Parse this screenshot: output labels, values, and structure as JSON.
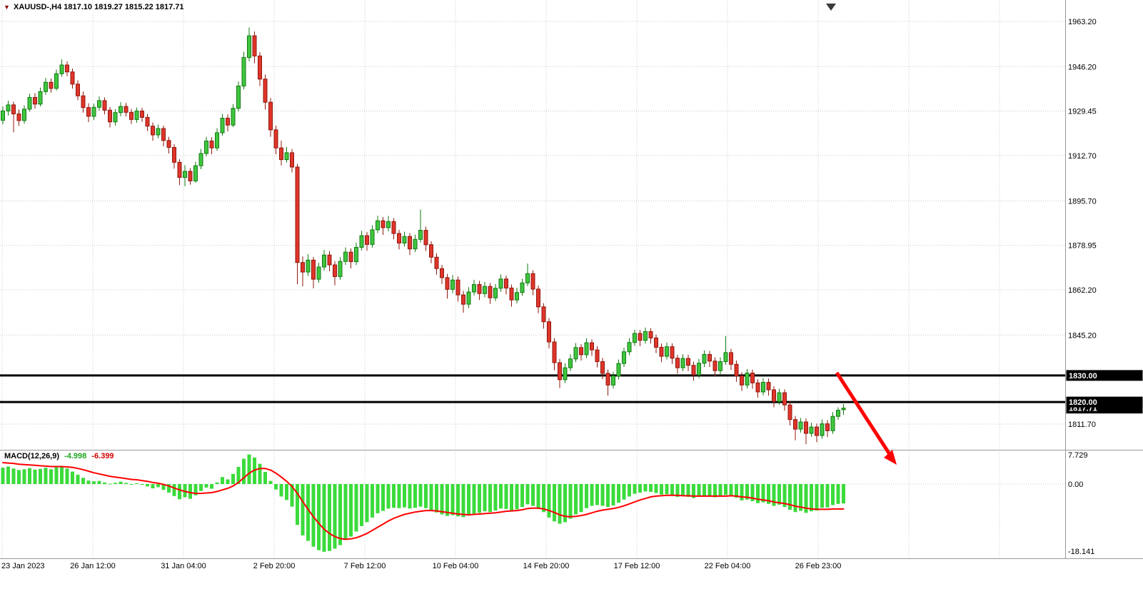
{
  "header": {
    "dropdown_icon": "▼",
    "symbol": "XAUUSD-,H4",
    "ohlc": "1817.10 1819.27 1815.22 1817.71"
  },
  "price_axis": {
    "levels": [
      {
        "label": "1830.00",
        "price": 1830.0
      },
      {
        "label": "1820.00",
        "price": 1820.0
      }
    ],
    "current_price": {
      "label": "1817.71",
      "price": 1817.71
    }
  },
  "macd_panel": {
    "label": "MACD(12,26,9)",
    "value_main": "-4.998",
    "value_signal": "-6.399"
  },
  "colors": {
    "candle_up": "#3fc63f",
    "candle_up_border": "#117a11",
    "candle_down": "#e0352a",
    "candle_down_border": "#8f170e",
    "macd_histogram": "#3bdb3b",
    "macd_signal": "#ff0000",
    "hline": "#000000",
    "badge_bg": "#000000",
    "badge_text": "#ffffff",
    "arrow": "#ff0000",
    "grid": "#c9c9c9"
  },
  "chart_data": {
    "type": "candlestick",
    "symbol": "XAUUSD",
    "timeframe": "H4",
    "title": "XAUUSD-,H4 1817.10 1819.27 1815.22 1817.71",
    "ylim_main": [
      1800.0,
      1968.0
    ],
    "ylim_macd": [
      -18.141,
      7.729
    ],
    "grid": true,
    "hlines": [
      1830.0,
      1820.0
    ],
    "last_price": 1817.71,
    "axes": {
      "price_ticks": [
        "1963.20",
        "1946.20",
        "1929.45",
        "1912.70",
        "1895.70",
        "1878.95",
        "1862.20",
        "1845.20",
        "1811.70"
      ],
      "macd_ticks": [
        "7.729",
        "0.00",
        "-18.141"
      ],
      "time_ticks": [
        "23 Jan 2023",
        "26 Jan 12:00",
        "31 Jan 04:00",
        "2 Feb 20:00",
        "7 Feb 12:00",
        "10 Feb 04:00",
        "14 Feb 20:00",
        "17 Feb 12:00",
        "22 Feb 04:00",
        "26 Feb 23:00"
      ]
    },
    "candles": [
      [
        1926.0,
        1931.2,
        1924.5,
        1929.5
      ],
      [
        1929.5,
        1933.4,
        1927.8,
        1931.8
      ],
      [
        1931.8,
        1933.0,
        1921.5,
        1928.4
      ],
      [
        1928.4,
        1930.1,
        1923.9,
        1925.9
      ],
      [
        1925.9,
        1931.6,
        1924.7,
        1930.2
      ],
      [
        1930.2,
        1936.0,
        1929.3,
        1934.6
      ],
      [
        1934.6,
        1936.2,
        1930.4,
        1932.1
      ],
      [
        1932.1,
        1938.3,
        1931.2,
        1936.8
      ],
      [
        1936.8,
        1941.9,
        1935.6,
        1940.3
      ],
      [
        1940.3,
        1941.7,
        1936.4,
        1938.0
      ],
      [
        1938.0,
        1945.1,
        1937.2,
        1943.5
      ],
      [
        1943.5,
        1948.9,
        1942.4,
        1946.8
      ],
      [
        1946.8,
        1948.2,
        1942.6,
        1944.2
      ],
      [
        1944.2,
        1945.5,
        1937.9,
        1939.6
      ],
      [
        1939.6,
        1941.0,
        1933.6,
        1935.2
      ],
      [
        1935.2,
        1936.8,
        1928.9,
        1930.8
      ],
      [
        1930.8,
        1932.4,
        1925.3,
        1927.5
      ],
      [
        1927.5,
        1932.2,
        1926.1,
        1930.9
      ],
      [
        1930.9,
        1935.0,
        1929.6,
        1933.4
      ],
      [
        1933.4,
        1934.6,
        1928.2,
        1929.8
      ],
      [
        1929.8,
        1931.0,
        1923.3,
        1925.4
      ],
      [
        1925.4,
        1930.2,
        1924.0,
        1928.9
      ],
      [
        1928.9,
        1932.8,
        1927.5,
        1931.2
      ],
      [
        1931.2,
        1932.5,
        1927.4,
        1929.0
      ],
      [
        1929.0,
        1930.3,
        1924.6,
        1926.3
      ],
      [
        1926.3,
        1930.8,
        1925.1,
        1929.5
      ],
      [
        1929.5,
        1930.7,
        1925.4,
        1927.1
      ],
      [
        1927.1,
        1928.4,
        1921.9,
        1923.8
      ],
      [
        1923.8,
        1925.2,
        1918.3,
        1920.5
      ],
      [
        1920.5,
        1924.4,
        1919.2,
        1922.9
      ],
      [
        1922.9,
        1924.0,
        1916.2,
        1918.4
      ],
      [
        1918.4,
        1919.8,
        1913.5,
        1915.8
      ],
      [
        1915.8,
        1917.0,
        1907.8,
        1910.2
      ],
      [
        1910.2,
        1911.4,
        1901.6,
        1904.5
      ],
      [
        1904.5,
        1909.1,
        1901.2,
        1906.8
      ],
      [
        1906.8,
        1908.0,
        1901.8,
        1903.2
      ],
      [
        1903.2,
        1910.4,
        1902.5,
        1908.9
      ],
      [
        1908.9,
        1915.2,
        1907.6,
        1913.5
      ],
      [
        1913.5,
        1919.8,
        1912.4,
        1918.2
      ],
      [
        1918.2,
        1919.6,
        1913.2,
        1915.6
      ],
      [
        1915.6,
        1923.0,
        1914.5,
        1921.3
      ],
      [
        1921.3,
        1928.4,
        1920.2,
        1926.8
      ],
      [
        1926.8,
        1928.2,
        1921.8,
        1924.2
      ],
      [
        1924.2,
        1932.1,
        1923.4,
        1930.5
      ],
      [
        1930.5,
        1940.6,
        1929.3,
        1938.9
      ],
      [
        1938.9,
        1951.8,
        1937.6,
        1949.6
      ],
      [
        1949.6,
        1960.9,
        1948.2,
        1957.8
      ],
      [
        1957.8,
        1959.4,
        1947.5,
        1950.2
      ],
      [
        1950.2,
        1951.6,
        1938.9,
        1941.5
      ],
      [
        1941.5,
        1943.2,
        1930.1,
        1932.8
      ],
      [
        1932.8,
        1934.4,
        1919.8,
        1922.4
      ],
      [
        1922.4,
        1924.0,
        1913.2,
        1915.6
      ],
      [
        1915.6,
        1918.3,
        1909.0,
        1911.2
      ],
      [
        1911.2,
        1916.0,
        1910.1,
        1913.8
      ],
      [
        1913.8,
        1915.2,
        1906.4,
        1908.4
      ],
      [
        1908.4,
        1909.6,
        1864.3,
        1872.5
      ],
      [
        1872.5,
        1874.8,
        1863.5,
        1868.9
      ],
      [
        1868.9,
        1875.6,
        1867.4,
        1873.4
      ],
      [
        1873.4,
        1874.6,
        1862.8,
        1866.2
      ],
      [
        1866.2,
        1872.4,
        1864.9,
        1870.8
      ],
      [
        1870.8,
        1877.2,
        1869.5,
        1875.3
      ],
      [
        1875.3,
        1876.8,
        1869.2,
        1871.6
      ],
      [
        1871.6,
        1873.0,
        1863.9,
        1867.2
      ],
      [
        1867.2,
        1874.5,
        1866.0,
        1872.9
      ],
      [
        1872.9,
        1878.2,
        1871.6,
        1876.4
      ],
      [
        1876.4,
        1877.8,
        1870.3,
        1872.8
      ],
      [
        1872.8,
        1880.0,
        1871.5,
        1878.2
      ],
      [
        1878.2,
        1884.4,
        1877.0,
        1882.6
      ],
      [
        1882.6,
        1884.0,
        1876.9,
        1879.3
      ],
      [
        1879.3,
        1886.5,
        1878.1,
        1884.8
      ],
      [
        1884.8,
        1890.1,
        1883.6,
        1888.2
      ],
      [
        1888.2,
        1889.6,
        1882.9,
        1885.6
      ],
      [
        1885.6,
        1890.0,
        1884.2,
        1887.9
      ],
      [
        1887.9,
        1889.2,
        1881.2,
        1883.4
      ],
      [
        1883.4,
        1884.8,
        1877.4,
        1879.8
      ],
      [
        1879.8,
        1884.1,
        1878.5,
        1882.3
      ],
      [
        1882.3,
        1883.6,
        1875.3,
        1877.6
      ],
      [
        1877.6,
        1883.0,
        1876.4,
        1881.2
      ],
      [
        1881.2,
        1892.4,
        1880.0,
        1884.6
      ],
      [
        1884.6,
        1886.0,
        1876.8,
        1879.2
      ],
      [
        1879.2,
        1880.5,
        1872.2,
        1874.5
      ],
      [
        1874.5,
        1876.0,
        1867.9,
        1870.2
      ],
      [
        1870.2,
        1871.6,
        1864.4,
        1866.8
      ],
      [
        1866.8,
        1868.2,
        1858.9,
        1862.4
      ],
      [
        1862.4,
        1867.8,
        1861.0,
        1865.9
      ],
      [
        1865.9,
        1867.2,
        1857.8,
        1860.3
      ],
      [
        1860.3,
        1861.8,
        1853.6,
        1856.8
      ],
      [
        1856.8,
        1863.2,
        1855.4,
        1861.4
      ],
      [
        1861.4,
        1866.0,
        1860.1,
        1864.2
      ],
      [
        1864.2,
        1865.6,
        1858.4,
        1860.8
      ],
      [
        1860.8,
        1865.2,
        1859.4,
        1863.5
      ],
      [
        1863.5,
        1864.8,
        1856.9,
        1859.2
      ],
      [
        1859.2,
        1864.4,
        1858.0,
        1862.8
      ],
      [
        1862.8,
        1868.0,
        1861.5,
        1866.3
      ],
      [
        1866.3,
        1867.6,
        1860.5,
        1862.9
      ],
      [
        1862.9,
        1864.2,
        1855.9,
        1858.4
      ],
      [
        1858.4,
        1863.0,
        1857.1,
        1861.2
      ],
      [
        1861.2,
        1866.4,
        1860.0,
        1864.8
      ],
      [
        1864.8,
        1872.1,
        1863.6,
        1868.3
      ],
      [
        1868.3,
        1869.6,
        1860.2,
        1862.5
      ],
      [
        1862.5,
        1863.8,
        1853.4,
        1855.8
      ],
      [
        1855.8,
        1857.2,
        1847.6,
        1850.2
      ],
      [
        1850.2,
        1851.6,
        1840.2,
        1842.6
      ],
      [
        1842.6,
        1844.0,
        1831.9,
        1834.8
      ],
      [
        1834.8,
        1836.2,
        1825.3,
        1828.4
      ],
      [
        1828.4,
        1834.6,
        1827.1,
        1832.9
      ],
      [
        1832.9,
        1838.0,
        1831.6,
        1836.2
      ],
      [
        1836.2,
        1842.2,
        1835.0,
        1840.5
      ],
      [
        1840.5,
        1841.8,
        1835.6,
        1837.8
      ],
      [
        1837.8,
        1844.0,
        1836.5,
        1842.3
      ],
      [
        1842.3,
        1843.6,
        1837.4,
        1839.6
      ],
      [
        1839.6,
        1841.0,
        1833.0,
        1835.2
      ],
      [
        1835.2,
        1836.6,
        1828.6,
        1830.8
      ],
      [
        1830.8,
        1832.2,
        1822.4,
        1826.4
      ],
      [
        1826.4,
        1831.4,
        1825.1,
        1829.8
      ],
      [
        1829.8,
        1836.0,
        1828.5,
        1834.5
      ],
      [
        1834.5,
        1840.4,
        1833.2,
        1838.9
      ],
      [
        1838.9,
        1844.0,
        1837.6,
        1842.4
      ],
      [
        1842.4,
        1847.2,
        1841.1,
        1845.8
      ],
      [
        1845.8,
        1847.1,
        1841.0,
        1843.2
      ],
      [
        1843.2,
        1848.0,
        1842.0,
        1846.5
      ],
      [
        1846.5,
        1847.8,
        1842.0,
        1844.1
      ],
      [
        1844.1,
        1845.4,
        1838.4,
        1840.6
      ],
      [
        1840.6,
        1842.0,
        1835.0,
        1837.2
      ],
      [
        1837.2,
        1842.4,
        1836.0,
        1840.8
      ],
      [
        1840.8,
        1842.1,
        1834.3,
        1836.5
      ],
      [
        1836.5,
        1837.8,
        1830.7,
        1832.9
      ],
      [
        1832.9,
        1838.0,
        1831.6,
        1836.4
      ],
      [
        1836.4,
        1837.8,
        1831.6,
        1833.8
      ],
      [
        1833.8,
        1835.2,
        1828.0,
        1830.2
      ],
      [
        1830.2,
        1836.2,
        1829.0,
        1834.6
      ],
      [
        1834.6,
        1839.4,
        1833.2,
        1837.9
      ],
      [
        1837.9,
        1839.2,
        1833.2,
        1835.4
      ],
      [
        1835.4,
        1836.8,
        1829.6,
        1831.8
      ],
      [
        1831.8,
        1836.8,
        1830.5,
        1835.2
      ],
      [
        1835.2,
        1844.8,
        1834.0,
        1838.6
      ],
      [
        1838.6,
        1840.0,
        1832.0,
        1834.2
      ],
      [
        1834.2,
        1835.6,
        1827.6,
        1829.8
      ],
      [
        1829.8,
        1831.2,
        1824.2,
        1826.4
      ],
      [
        1826.4,
        1832.4,
        1825.1,
        1830.9
      ],
      [
        1830.9,
        1832.2,
        1825.0,
        1827.2
      ],
      [
        1827.2,
        1828.6,
        1821.6,
        1823.8
      ],
      [
        1823.8,
        1829.0,
        1822.5,
        1827.4
      ],
      [
        1827.4,
        1828.8,
        1822.4,
        1824.6
      ],
      [
        1824.6,
        1826.0,
        1818.0,
        1820.2
      ],
      [
        1820.2,
        1825.0,
        1819.0,
        1823.5
      ],
      [
        1823.5,
        1824.8,
        1816.7,
        1818.9
      ],
      [
        1818.9,
        1820.2,
        1811.2,
        1813.4
      ],
      [
        1813.4,
        1814.8,
        1805.6,
        1809.8
      ],
      [
        1809.8,
        1814.0,
        1808.5,
        1812.5
      ],
      [
        1812.5,
        1813.8,
        1804.1,
        1808.2
      ],
      [
        1808.2,
        1812.2,
        1806.9,
        1810.6
      ],
      [
        1810.6,
        1811.9,
        1804.9,
        1807.4
      ],
      [
        1807.4,
        1813.4,
        1806.2,
        1811.8
      ],
      [
        1811.8,
        1813.2,
        1806.8,
        1809.2
      ],
      [
        1809.2,
        1816.2,
        1808.0,
        1814.6
      ],
      [
        1814.6,
        1818.0,
        1813.3,
        1816.9
      ],
      [
        1817.1,
        1819.3,
        1815.2,
        1817.7
      ]
    ],
    "macd_histogram": [
      4.2,
      4.5,
      4.0,
      3.6,
      3.8,
      4.1,
      3.7,
      3.9,
      4.2,
      3.8,
      4.3,
      4.6,
      4.0,
      3.2,
      2.4,
      1.6,
      0.9,
      0.7,
      0.8,
      0.4,
      0.1,
      0.3,
      0.6,
      0.3,
      -0.1,
      0.2,
      -0.2,
      -0.6,
      -1.1,
      -0.8,
      -1.5,
      -2.2,
      -3.1,
      -3.9,
      -3.4,
      -3.8,
      -2.9,
      -1.8,
      -0.9,
      -1.2,
      0.4,
      1.8,
      1.2,
      2.6,
      4.4,
      6.5,
      7.6,
      6.8,
      5.2,
      3.1,
      0.8,
      -1.4,
      -3.2,
      -4.1,
      -5.8,
      -10.5,
      -13.2,
      -14.6,
      -16.1,
      -17.0,
      -17.4,
      -17.2,
      -16.6,
      -15.7,
      -14.4,
      -13.5,
      -12.2,
      -10.8,
      -9.8,
      -8.6,
      -7.5,
      -6.9,
      -6.3,
      -6.1,
      -6.2,
      -6.0,
      -6.3,
      -6.1,
      -5.8,
      -6.2,
      -6.8,
      -7.3,
      -7.8,
      -8.2,
      -8.0,
      -8.3,
      -8.5,
      -8.1,
      -7.6,
      -7.4,
      -7.0,
      -7.2,
      -6.8,
      -6.3,
      -6.4,
      -6.8,
      -6.5,
      -5.9,
      -5.2,
      -5.6,
      -6.4,
      -7.2,
      -8.6,
      -9.6,
      -10.2,
      -9.8,
      -8.9,
      -7.8,
      -7.2,
      -6.2,
      -5.6,
      -5.4,
      -5.6,
      -5.9,
      -5.5,
      -4.8,
      -4.0,
      -3.2,
      -2.5,
      -2.2,
      -1.9,
      -2.0,
      -2.3,
      -2.7,
      -2.6,
      -2.9,
      -3.3,
      -3.1,
      -3.3,
      -3.6,
      -3.3,
      -3.0,
      -3.1,
      -3.4,
      -3.1,
      -2.8,
      -3.0,
      -3.5,
      -4.2,
      -4.0,
      -4.4,
      -4.9,
      -4.7,
      -5.1,
      -5.6,
      -5.3,
      -5.9,
      -6.6,
      -7.2,
      -6.9,
      -7.4,
      -7.0,
      -6.8,
      -6.1,
      -6.0,
      -5.4,
      -5.1,
      -5.0
    ],
    "macd_signal": [
      5.5,
      5.4,
      5.3,
      5.1,
      5.0,
      4.9,
      4.8,
      4.7,
      4.6,
      4.5,
      4.5,
      4.5,
      4.4,
      4.3,
      4.0,
      3.7,
      3.3,
      2.9,
      2.6,
      2.3,
      2.0,
      1.8,
      1.6,
      1.4,
      1.2,
      1.1,
      0.9,
      0.7,
      0.4,
      0.2,
      -0.1,
      -0.5,
      -1.0,
      -1.5,
      -1.9,
      -2.2,
      -2.4,
      -2.4,
      -2.3,
      -2.2,
      -1.9,
      -1.5,
      -1.1,
      -0.5,
      0.4,
      1.6,
      2.8,
      3.6,
      4.0,
      4.0,
      3.6,
      2.8,
      1.8,
      0.7,
      -0.6,
      -2.4,
      -4.5,
      -6.5,
      -8.4,
      -10.1,
      -11.6,
      -12.7,
      -13.5,
      -14.0,
      -14.2,
      -14.1,
      -13.8,
      -13.3,
      -12.7,
      -11.9,
      -11.1,
      -10.3,
      -9.5,
      -8.8,
      -8.3,
      -7.8,
      -7.5,
      -7.2,
      -7.0,
      -6.8,
      -6.8,
      -6.9,
      -7.1,
      -7.3,
      -7.5,
      -7.7,
      -7.8,
      -7.9,
      -7.8,
      -7.7,
      -7.6,
      -7.5,
      -7.4,
      -7.2,
      -7.0,
      -6.9,
      -6.8,
      -6.6,
      -6.3,
      -6.2,
      -6.2,
      -6.4,
      -6.8,
      -7.3,
      -7.9,
      -8.3,
      -8.4,
      -8.3,
      -8.1,
      -7.8,
      -7.4,
      -7.0,
      -6.7,
      -6.5,
      -6.3,
      -6.0,
      -5.6,
      -5.1,
      -4.6,
      -4.1,
      -3.7,
      -3.3,
      -3.1,
      -3.0,
      -2.9,
      -2.9,
      -2.9,
      -3.0,
      -3.0,
      -3.1,
      -3.1,
      -3.1,
      -3.1,
      -3.1,
      -3.1,
      -3.1,
      -3.0,
      -3.1,
      -3.3,
      -3.4,
      -3.6,
      -3.9,
      -4.1,
      -4.3,
      -4.6,
      -4.8,
      -5.0,
      -5.3,
      -5.7,
      -5.9,
      -6.2,
      -6.4,
      -6.5,
      -6.5,
      -6.5,
      -6.4,
      -6.4,
      -6.4
    ]
  }
}
